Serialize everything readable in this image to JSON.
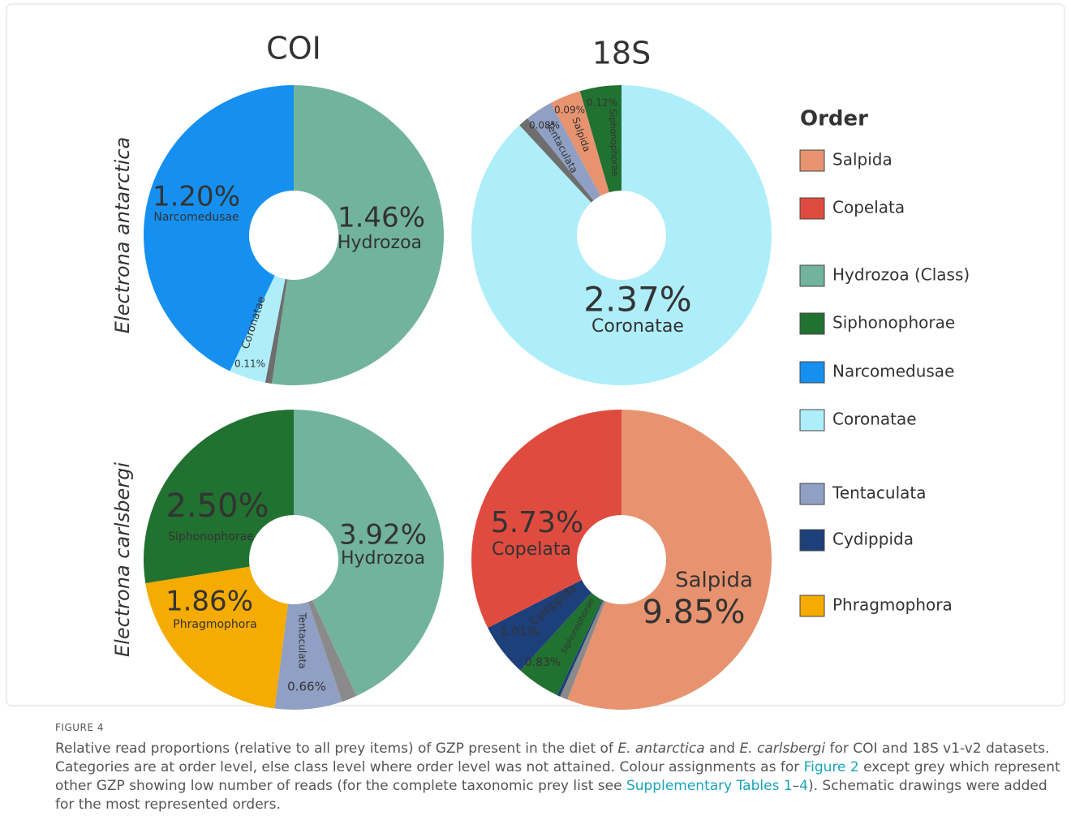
{
  "columns": [
    "COI",
    "18S"
  ],
  "rows": [
    "Electrona antarctica",
    "Electrona carlsbergi"
  ],
  "chart_data": [
    {
      "type": "pie",
      "categories": [
        "Hydrozoa",
        null,
        "Coronatae",
        "Narcomedusae"
      ],
      "values": [
        1.46,
        0.02,
        0.11,
        1.2
      ],
      "value_labels": [
        "1.46%",
        null,
        "0.11%",
        "1.20%"
      ],
      "colors": [
        "#72b39e",
        "#6e6e6e",
        "#aeeefa",
        "#1590f0"
      ]
    },
    {
      "type": "pie",
      "categories": [
        "Coronatae",
        null,
        "Tentaculata",
        "Salpida",
        "Siphonophorae"
      ],
      "values": [
        2.37,
        0.03,
        0.08,
        0.09,
        0.12
      ],
      "value_labels": [
        "2.37%",
        null,
        "0.08%",
        "0.09%",
        "0.12%"
      ],
      "colors": [
        "#aeeefa",
        "#6e6e6e",
        "#8fa0c4",
        "#e8936f",
        "#217131"
      ]
    },
    {
      "type": "pie",
      "categories": [
        "Hydrozoa",
        null,
        "Tentaculata",
        "Phragmophora",
        "Siphonophorae"
      ],
      "values": [
        3.92,
        0.15,
        0.66,
        1.86,
        2.5
      ],
      "value_labels": [
        "3.92%",
        null,
        "0.66%",
        "1.86%",
        "2.50%"
      ],
      "colors": [
        "#72b39e",
        "#8a8a8a",
        "#8fa0c4",
        "#f5ab00",
        "#217131"
      ]
    },
    {
      "type": "pie",
      "categories": [
        "Salpida",
        null,
        null,
        "Siphonophorae",
        "Cydippida",
        "Copelata"
      ],
      "values": [
        9.85,
        0.15,
        0.06,
        0.83,
        1.01,
        5.73
      ],
      "value_labels": [
        "9.85%",
        null,
        null,
        "0.83%",
        "1.01%",
        "5.73%"
      ],
      "colors": [
        "#e8936f",
        "#8a8a8a",
        "#1d3f7a",
        "#217131",
        "#1d3f7a",
        "#e04b40"
      ]
    }
  ],
  "legend": {
    "title": "Order",
    "items": [
      {
        "name": "Salpida",
        "color": "#e8936f"
      },
      {
        "name": "Copelata",
        "color": "#e04b40"
      },
      {
        "name": "Hydrozoa (Class)",
        "color": "#72b39e"
      },
      {
        "name": "Siphonophorae",
        "color": "#217131"
      },
      {
        "name": "Narcomedusae",
        "color": "#1590f0"
      },
      {
        "name": "Coronatae",
        "color": "#aeeefa"
      },
      {
        "name": "Tentaculata",
        "color": "#8fa0c4"
      },
      {
        "name": "Cydippida",
        "color": "#1d3f7a"
      },
      {
        "name": "Phragmophora",
        "color": "#f5ab00"
      }
    ]
  },
  "figure_label": "FIGURE 4",
  "caption": [
    {
      "text": "Relative read proportions (relative to all prey items) of GZP present in the diet of "
    },
    {
      "text": "E. antarctica",
      "italic": true
    },
    {
      "text": " and "
    },
    {
      "text": "E. carlsbergi",
      "italic": true
    },
    {
      "text": " for COI and 18S v1-v2 datasets. Categories are at order level, else class level where order level was not attained. Colour assignments as for "
    },
    {
      "text": "Figure 2",
      "link": true
    },
    {
      "text": " except grey which represent other GZP showing low number of reads (for the complete taxonomic prey list see "
    },
    {
      "text": "Supplementary Tables 1",
      "link": true
    },
    {
      "text": "–"
    },
    {
      "text": "4",
      "link": true
    },
    {
      "text": "). Schematic drawings were added for the most represented orders."
    }
  ]
}
